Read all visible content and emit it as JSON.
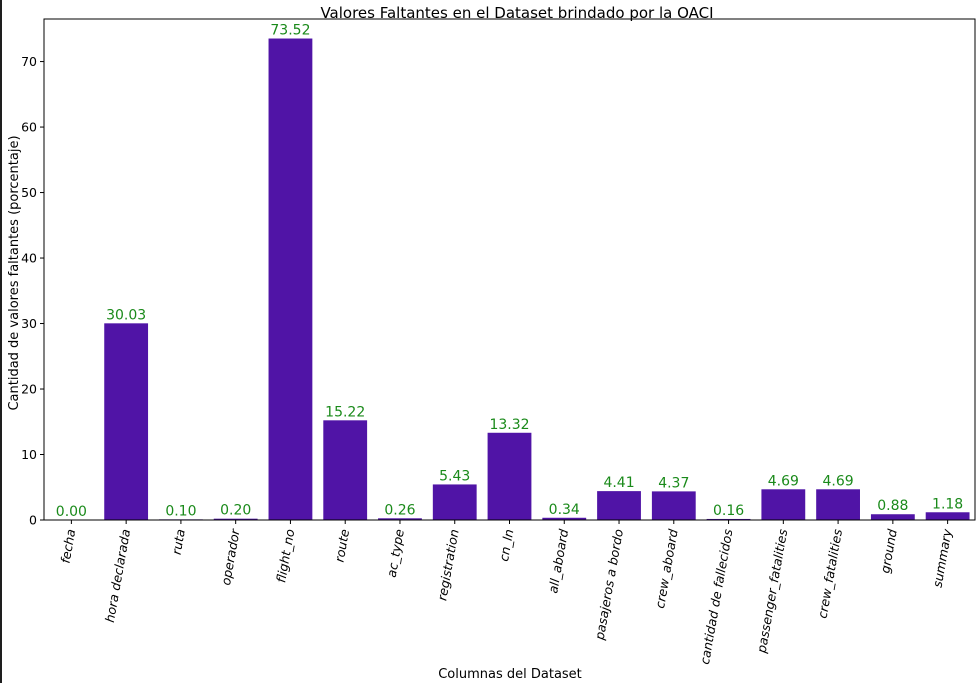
{
  "chart_data": {
    "type": "bar",
    "title": "Valores Faltantes en el Dataset brindado por la OACI",
    "xlabel": "Columnas del Dataset",
    "ylabel": "Cantidad de valores faltantes (porcentaje)",
    "ylim": [
      0,
      76.5
    ],
    "yticks": [
      0,
      10,
      20,
      30,
      40,
      50,
      60,
      70
    ],
    "grid": false,
    "bar_color": "#5014a6",
    "label_color": "#1a8a1a",
    "categories": [
      "fecha",
      "hora declarada",
      "ruta",
      "operador",
      "flight_no",
      "route",
      "ac_type",
      "registration",
      "cn_ln",
      "all_aboard",
      "pasajeros a bordo",
      "crew_aboard",
      "cantidad de fallecidos",
      "passenger_fatalities",
      "crew_fatalities",
      "ground",
      "summary"
    ],
    "values": [
      0.0,
      30.03,
      0.1,
      0.2,
      73.52,
      15.22,
      0.26,
      5.43,
      13.32,
      0.34,
      4.41,
      4.37,
      0.16,
      4.69,
      4.69,
      0.88,
      1.18
    ],
    "value_labels": [
      "0.00",
      "30.03",
      "0.10",
      "0.20",
      "73.52",
      "15.22",
      "0.26",
      "5.43",
      "13.32",
      "0.34",
      "4.41",
      "4.37",
      "0.16",
      "4.69",
      "4.69",
      "0.88",
      "1.18"
    ]
  }
}
